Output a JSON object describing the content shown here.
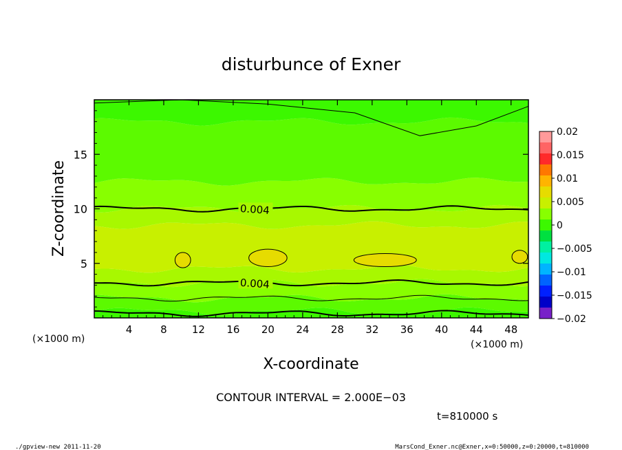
{
  "chart_data": {
    "type": "heatmap",
    "title": "disturbunce of Exner",
    "xlabel": "X-coordinate",
    "ylabel": "Z-coordinate",
    "x_unit": "(×1000 m)",
    "z_unit": "(×1000 m)",
    "xlim": [
      0,
      50
    ],
    "ylim": [
      0,
      20
    ],
    "x_ticks": [
      "4",
      "8",
      "12",
      "16",
      "20",
      "24",
      "28",
      "32",
      "36",
      "40",
      "44",
      "48"
    ],
    "y_ticks": [
      "5",
      "10",
      "15"
    ],
    "x_tick_values": [
      4,
      8,
      12,
      16,
      20,
      24,
      28,
      32,
      36,
      40,
      44,
      48
    ],
    "y_tick_values": [
      5,
      10,
      15
    ],
    "colorbar": {
      "labels": [
        "0.02",
        "0.015",
        "0.01",
        "0.005",
        "0",
        "−0.005",
        "−0.01",
        "−0.015",
        "−0.02"
      ],
      "label_values": [
        0.02,
        0.015,
        0.01,
        0.005,
        0,
        -0.005,
        -0.01,
        -0.015,
        -0.02
      ],
      "range": [
        -0.02,
        0.02
      ],
      "step": 0.0025,
      "colors_top_to_bottom": [
        "#ff9a9a",
        "#ff6464",
        "#ff2a2a",
        "#ff7800",
        "#ffb400",
        "#e6dc00",
        "#c8f000",
        "#88ff00",
        "#3cf800",
        "#00e040",
        "#00f0a0",
        "#00e8e0",
        "#00b4ff",
        "#0064ff",
        "#0020ff",
        "#0000c8",
        "#7820c8"
      ]
    },
    "bands": [
      {
        "z": [
          0.0,
          0.6
        ],
        "value": 0.002,
        "color": "#3cf800"
      },
      {
        "z": [
          0.6,
          1.8
        ],
        "value": 0.0025,
        "color": "#5cfa00"
      },
      {
        "z": [
          1.8,
          3.2
        ],
        "value": 0.003,
        "color": "#88ff00"
      },
      {
        "z": [
          3.2,
          4.5
        ],
        "value": 0.004,
        "color": "#a8f800"
      },
      {
        "z": [
          4.5,
          8.5
        ],
        "value": 0.005,
        "color": "#c8f000"
      },
      {
        "z": [
          8.5,
          10.0
        ],
        "value": 0.0045,
        "color": "#a8f800"
      },
      {
        "z": [
          10.0,
          12.5
        ],
        "value": 0.003,
        "color": "#88ff00"
      },
      {
        "z": [
          12.5,
          18.0
        ],
        "value": 0.002,
        "color": "#5cfa00"
      },
      {
        "z": [
          18.0,
          20.0
        ],
        "value": 0.001,
        "color": "#3cf800"
      }
    ],
    "contour_labels": [
      {
        "text": "0.004",
        "x": 18.5,
        "z": 10.0
      },
      {
        "text": "0.004",
        "x": 18.5,
        "z": 3.2
      }
    ],
    "annotations": {
      "contour_interval": "CONTOUR INTERVAL = 2.000E−03",
      "time": "t=810000 s"
    }
  },
  "footer": {
    "left": "./gpview-new   2011-11-20",
    "right": "MarsCond_Exner.nc@Exner,x=0:50000,z=0:20000,t=810000"
  }
}
